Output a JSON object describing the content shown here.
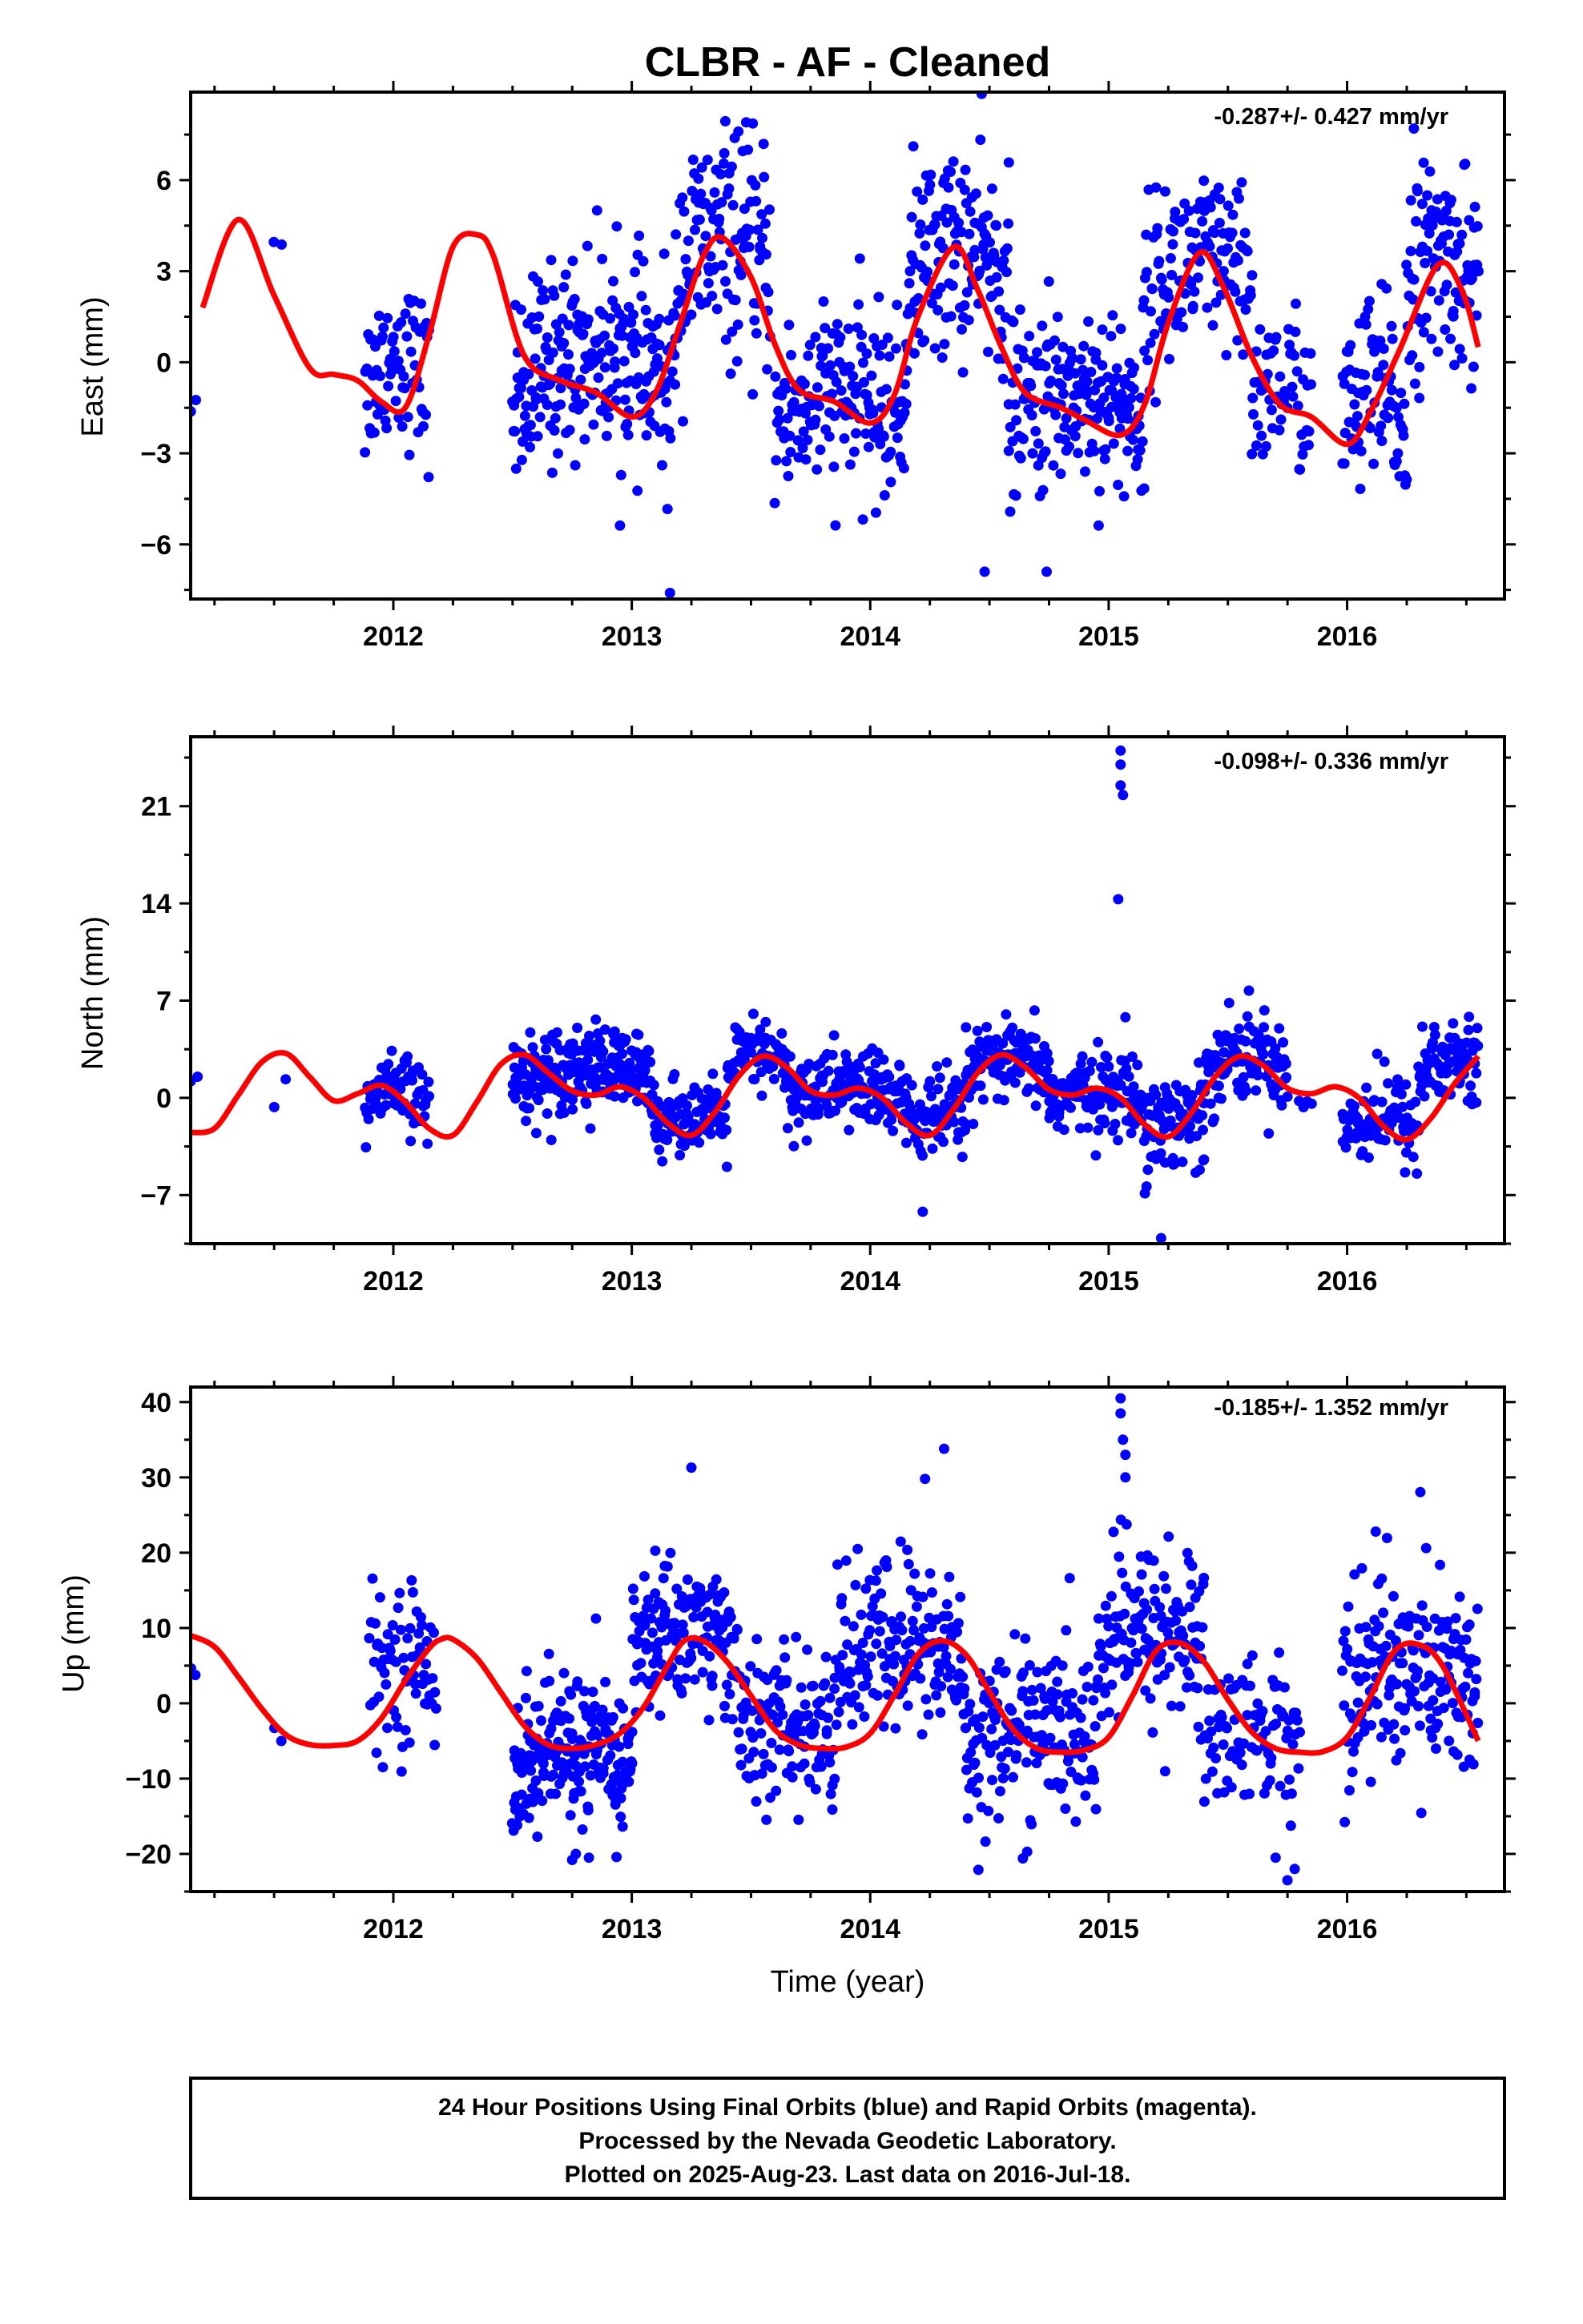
{
  "title": "CLBR  - AF - Cleaned",
  "xlabel": "Time (year)",
  "caption": [
    "24 Hour Positions Using Final Orbits (blue) and Rapid Orbits (magenta).",
    "Processed by the Nevada Geodetic Laboratory.",
    "Plotted on 2025-Aug-23. Last data on 2016-Jul-18."
  ],
  "colors": {
    "points": "#0000ff",
    "fit": "#ff0000",
    "frame": "#000000"
  },
  "chart_data": [
    {
      "type": "scatter",
      "ylabel": "East (mm)",
      "rate": "-0.287+/- 0.427 mm/yr",
      "xlim": [
        2011.15,
        2016.66
      ],
      "ylim": [
        -7.8,
        8.9
      ],
      "xticks": [
        2012,
        2013,
        2014,
        2015,
        2016
      ],
      "yticks": [
        -6,
        -3,
        0,
        3,
        6
      ],
      "fit": {
        "x": [
          2011.2,
          2011.35,
          2011.5,
          2011.65,
          2011.75,
          2011.85,
          2011.95,
          2012.05,
          2012.15,
          2012.25,
          2012.35,
          2012.42,
          2012.55,
          2012.7,
          2012.85,
          2013.0,
          2013.1,
          2013.2,
          2013.3,
          2013.38,
          2013.5,
          2013.6,
          2013.7,
          2013.85,
          2014.0,
          2014.1,
          2014.2,
          2014.35,
          2014.45,
          2014.55,
          2014.65,
          2014.8,
          2014.9,
          2015.05,
          2015.15,
          2015.25,
          2015.38,
          2015.48,
          2015.6,
          2015.72,
          2015.85,
          2016.0,
          2016.1,
          2016.22,
          2016.38,
          2016.48,
          2016.55
        ],
        "y": [
          1.8,
          4.7,
          2.2,
          -0.2,
          -0.4,
          -0.6,
          -1.3,
          -1.5,
          0.9,
          3.8,
          4.2,
          3.5,
          0.2,
          -0.6,
          -1.0,
          -1.8,
          -1.0,
          1.2,
          3.5,
          4.1,
          2.8,
          0.6,
          -0.9,
          -1.3,
          -2.0,
          -1.1,
          1.5,
          3.8,
          2.4,
          0.5,
          -1.0,
          -1.5,
          -1.9,
          -2.4,
          -1.4,
          1.3,
          3.6,
          2.5,
          0.2,
          -1.4,
          -1.8,
          -2.7,
          -1.6,
          0.4,
          3.2,
          2.4,
          0.5
        ]
      },
      "clusters": [
        {
          "x": [
            2011.15,
            2011.17
          ],
          "n": 2,
          "mean": -1.0,
          "amp": 0.0,
          "spread": 0.6
        },
        {
          "x": [
            2011.5,
            2011.53
          ],
          "n": 2,
          "mean": 4.0,
          "amp": 0.0,
          "spread": 0.3
        },
        {
          "x": [
            2011.88,
            2012.15
          ],
          "n": 70,
          "mean": -0.9,
          "amp": 1.2,
          "spread": 1.3
        },
        {
          "x": [
            2012.5,
            2013.18
          ],
          "n": 240,
          "mean": -1.2,
          "amp": 1.6,
          "spread": 1.6
        },
        {
          "x": [
            2013.18,
            2013.58
          ],
          "n": 130,
          "mean": 3.0,
          "amp": 1.0,
          "spread": 1.8
        },
        {
          "x": [
            2013.6,
            2014.15
          ],
          "n": 170,
          "mean": -1.9,
          "amp": 0.8,
          "spread": 1.5
        },
        {
          "x": [
            2014.15,
            2014.58
          ],
          "n": 140,
          "mean": 2.6,
          "amp": 1.2,
          "spread": 1.7
        },
        {
          "x": [
            2014.58,
            2015.15
          ],
          "n": 190,
          "mean": -1.8,
          "amp": 0.8,
          "spread": 1.5
        },
        {
          "x": [
            2015.15,
            2015.6
          ],
          "n": 130,
          "mean": 2.3,
          "amp": 1.0,
          "spread": 1.5
        },
        {
          "x": [
            2015.6,
            2015.85
          ],
          "n": 60,
          "mean": -1.2,
          "amp": 0.5,
          "spread": 1.3
        },
        {
          "x": [
            2015.98,
            2016.25
          ],
          "n": 80,
          "mean": -2.2,
          "amp": 1.2,
          "spread": 1.6
        },
        {
          "x": [
            2016.25,
            2016.55
          ],
          "n": 100,
          "mean": 2.6,
          "amp": 0.8,
          "spread": 1.6
        }
      ],
      "outliers": {
        "x": [
          2013.16,
          2014.74,
          2014.48,
          2016.28
        ],
        "y": [
          -7.6,
          -6.9,
          -6.9,
          7.7
        ]
      }
    },
    {
      "type": "scatter",
      "ylabel": "North (mm)",
      "rate": "-0.098+/- 0.336 mm/yr",
      "xlim": [
        2011.15,
        2016.66
      ],
      "ylim": [
        -10.5,
        26.0
      ],
      "xticks": [
        2012,
        2013,
        2014,
        2015,
        2016
      ],
      "yticks": [
        -7,
        0,
        7,
        14,
        21
      ],
      "fit": {
        "x": [
          2011.15,
          2011.25,
          2011.35,
          2011.45,
          2011.55,
          2011.65,
          2011.75,
          2011.85,
          2011.95,
          2012.05,
          2012.15,
          2012.25,
          2012.35,
          2012.45,
          2012.55,
          2012.65,
          2012.75,
          2012.85,
          2012.95,
          2013.05,
          2013.15,
          2013.25,
          2013.35,
          2013.45,
          2013.55,
          2013.65,
          2013.75,
          2013.85,
          2013.95,
          2014.05,
          2014.15,
          2014.25,
          2014.35,
          2014.45,
          2014.55,
          2014.65,
          2014.75,
          2014.85,
          2014.95,
          2015.05,
          2015.15,
          2015.25,
          2015.35,
          2015.45,
          2015.55,
          2015.65,
          2015.75,
          2015.85,
          2015.95,
          2016.05,
          2016.15,
          2016.25,
          2016.35,
          2016.45,
          2016.55
        ],
        "y": [
          -2.5,
          -2.2,
          0.2,
          2.6,
          3.2,
          1.5,
          -0.2,
          0.3,
          0.9,
          -0.3,
          -2.2,
          -2.7,
          -0.3,
          2.4,
          3.1,
          1.8,
          0.5,
          0.2,
          0.8,
          0.0,
          -1.8,
          -2.7,
          -1.0,
          1.6,
          3.0,
          2.2,
          0.5,
          0.2,
          0.7,
          0.0,
          -1.8,
          -2.7,
          -0.8,
          1.8,
          3.1,
          2.2,
          0.6,
          0.2,
          0.7,
          0.0,
          -1.9,
          -2.8,
          -1.0,
          1.6,
          3.0,
          2.3,
          0.7,
          0.3,
          0.8,
          0.0,
          -2.0,
          -3.0,
          -1.5,
          1.0,
          3.0
        ]
      },
      "clusters": [
        {
          "x": [
            2011.15,
            2011.18
          ],
          "n": 2,
          "mean": 0.3,
          "amp": 0.0,
          "spread": 0.8
        },
        {
          "x": [
            2011.5,
            2011.55
          ],
          "n": 2,
          "mean": 0.8,
          "amp": 0.0,
          "spread": 1.2
        },
        {
          "x": [
            2011.88,
            2012.15
          ],
          "n": 70,
          "mean": -0.5,
          "amp": 1.0,
          "spread": 1.3
        },
        {
          "x": [
            2012.5,
            2013.1
          ],
          "n": 220,
          "mean": 1.2,
          "amp": 1.0,
          "spread": 1.5
        },
        {
          "x": [
            2013.1,
            2013.4
          ],
          "n": 90,
          "mean": -2.0,
          "amp": 0.8,
          "spread": 1.2
        },
        {
          "x": [
            2013.4,
            2013.65
          ],
          "n": 70,
          "mean": 2.2,
          "amp": 0.8,
          "spread": 1.4
        },
        {
          "x": [
            2013.65,
            2014.15
          ],
          "n": 160,
          "mean": 0.0,
          "amp": 0.8,
          "spread": 1.5
        },
        {
          "x": [
            2014.15,
            2014.4
          ],
          "n": 80,
          "mean": -2.0,
          "amp": 0.8,
          "spread": 1.6
        },
        {
          "x": [
            2014.4,
            2014.75
          ],
          "n": 110,
          "mean": 1.8,
          "amp": 0.8,
          "spread": 1.3
        },
        {
          "x": [
            2014.75,
            2015.15
          ],
          "n": 130,
          "mean": -0.3,
          "amp": 0.8,
          "spread": 1.4
        },
        {
          "x": [
            2015.15,
            2015.4
          ],
          "n": 80,
          "mean": -2.2,
          "amp": 0.8,
          "spread": 1.8
        },
        {
          "x": [
            2015.4,
            2015.75
          ],
          "n": 100,
          "mean": 2.2,
          "amp": 1.0,
          "spread": 1.6
        },
        {
          "x": [
            2015.8,
            2015.85
          ],
          "n": 4,
          "mean": -0.5,
          "amp": 0.0,
          "spread": 1.0
        },
        {
          "x": [
            2015.98,
            2016.3
          ],
          "n": 90,
          "mean": -2.2,
          "amp": 1.0,
          "spread": 1.6
        },
        {
          "x": [
            2016.3,
            2016.55
          ],
          "n": 80,
          "mean": 1.8,
          "amp": 1.0,
          "spread": 1.7
        }
      ],
      "outliers": {
        "x": [
          2015.05,
          2015.05,
          2015.05,
          2015.06,
          2015.04,
          2015.07,
          2015.22,
          2014.22
        ],
        "y": [
          25.0,
          24.0,
          22.5,
          21.8,
          14.3,
          5.8,
          -10.1,
          -8.2
        ]
      }
    },
    {
      "type": "scatter",
      "ylabel": "Up (mm)",
      "rate": "-0.185+/- 1.352 mm/yr",
      "xlim": [
        2011.15,
        2016.66
      ],
      "ylim": [
        -25.0,
        42.0
      ],
      "xticks": [
        2012,
        2013,
        2014,
        2015,
        2016
      ],
      "yticks": [
        -20,
        -10,
        0,
        10,
        20,
        30,
        40
      ],
      "fit": {
        "x": [
          2011.15,
          2011.25,
          2011.35,
          2011.45,
          2011.55,
          2011.65,
          2011.75,
          2011.85,
          2011.95,
          2012.05,
          2012.15,
          2012.2,
          2012.25,
          2012.35,
          2012.45,
          2012.55,
          2012.65,
          2012.75,
          2012.85,
          2012.95,
          2013.05,
          2013.15,
          2013.22,
          2013.3,
          2013.4,
          2013.5,
          2013.6,
          2013.7,
          2013.8,
          2013.9,
          2014.0,
          2014.1,
          2014.2,
          2014.3,
          2014.4,
          2014.5,
          2014.6,
          2014.7,
          2014.8,
          2014.9,
          2015.0,
          2015.1,
          2015.2,
          2015.3,
          2015.4,
          2015.5,
          2015.6,
          2015.7,
          2015.8,
          2015.9,
          2016.0,
          2016.1,
          2016.2,
          2016.3,
          2016.4,
          2016.55
        ],
        "y": [
          9.0,
          7.5,
          3.5,
          -0.8,
          -4.2,
          -5.5,
          -5.6,
          -5.0,
          -2.0,
          3.0,
          7.3,
          8.5,
          8.5,
          6.0,
          1.5,
          -3.0,
          -5.5,
          -6.0,
          -5.5,
          -4.0,
          -0.5,
          5.0,
          8.3,
          8.3,
          5.5,
          1.0,
          -3.5,
          -5.5,
          -6.0,
          -5.8,
          -4.0,
          1.0,
          6.5,
          8.3,
          6.5,
          1.5,
          -3.5,
          -6.0,
          -6.5,
          -6.2,
          -4.5,
          1.0,
          7.0,
          8.0,
          5.5,
          0.5,
          -3.8,
          -6.0,
          -6.5,
          -6.4,
          -4.5,
          1.0,
          7.0,
          7.8,
          5.0,
          -5.0
        ]
      },
      "clusters": [
        {
          "x": [
            2011.15,
            2011.17
          ],
          "n": 2,
          "mean": 8.0,
          "amp": 0.0,
          "spread": 6.0
        },
        {
          "x": [
            2011.5,
            2011.53
          ],
          "n": 2,
          "mean": -2.8,
          "amp": 0.0,
          "spread": 1.2
        },
        {
          "x": [
            2011.9,
            2012.18
          ],
          "n": 70,
          "mean": 3.0,
          "amp": 3.0,
          "spread": 5.0
        },
        {
          "x": [
            2012.5,
            2013.0
          ],
          "n": 200,
          "mean": -9.0,
          "amp": 3.0,
          "spread": 5.0
        },
        {
          "x": [
            2013.0,
            2013.45
          ],
          "n": 150,
          "mean": 7.0,
          "amp": 3.0,
          "spread": 5.0
        },
        {
          "x": [
            2013.45,
            2013.85
          ],
          "n": 120,
          "mean": -5.0,
          "amp": 2.0,
          "spread": 5.0
        },
        {
          "x": [
            2013.85,
            2014.4
          ],
          "n": 170,
          "mean": 5.0,
          "amp": 3.0,
          "spread": 6.0
        },
        {
          "x": [
            2014.4,
            2014.95
          ],
          "n": 170,
          "mean": -6.0,
          "amp": 3.0,
          "spread": 5.5
        },
        {
          "x": [
            2014.95,
            2015.4
          ],
          "n": 140,
          "mean": 7.0,
          "amp": 3.0,
          "spread": 6.0
        },
        {
          "x": [
            2015.4,
            2015.8
          ],
          "n": 90,
          "mean": -5.0,
          "amp": 2.0,
          "spread": 5.0
        },
        {
          "x": [
            2015.98,
            2016.55
          ],
          "n": 180,
          "mean": 2.0,
          "amp": 3.0,
          "spread": 7.0
        }
      ],
      "outliers": {
        "x": [
          2015.05,
          2015.05,
          2015.06,
          2015.07,
          2015.07,
          2013.25,
          2014.31,
          2014.23,
          2015.7,
          2015.75,
          2015.78,
          2016.12,
          2012.82,
          2012.75,
          2014.64
        ],
        "y": [
          40.5,
          38.5,
          35.0,
          33.0,
          30.0,
          31.3,
          33.8,
          29.8,
          -20.5,
          -23.5,
          -22.0,
          22.8,
          -20.5,
          -20.8,
          -20.6
        ]
      }
    }
  ]
}
